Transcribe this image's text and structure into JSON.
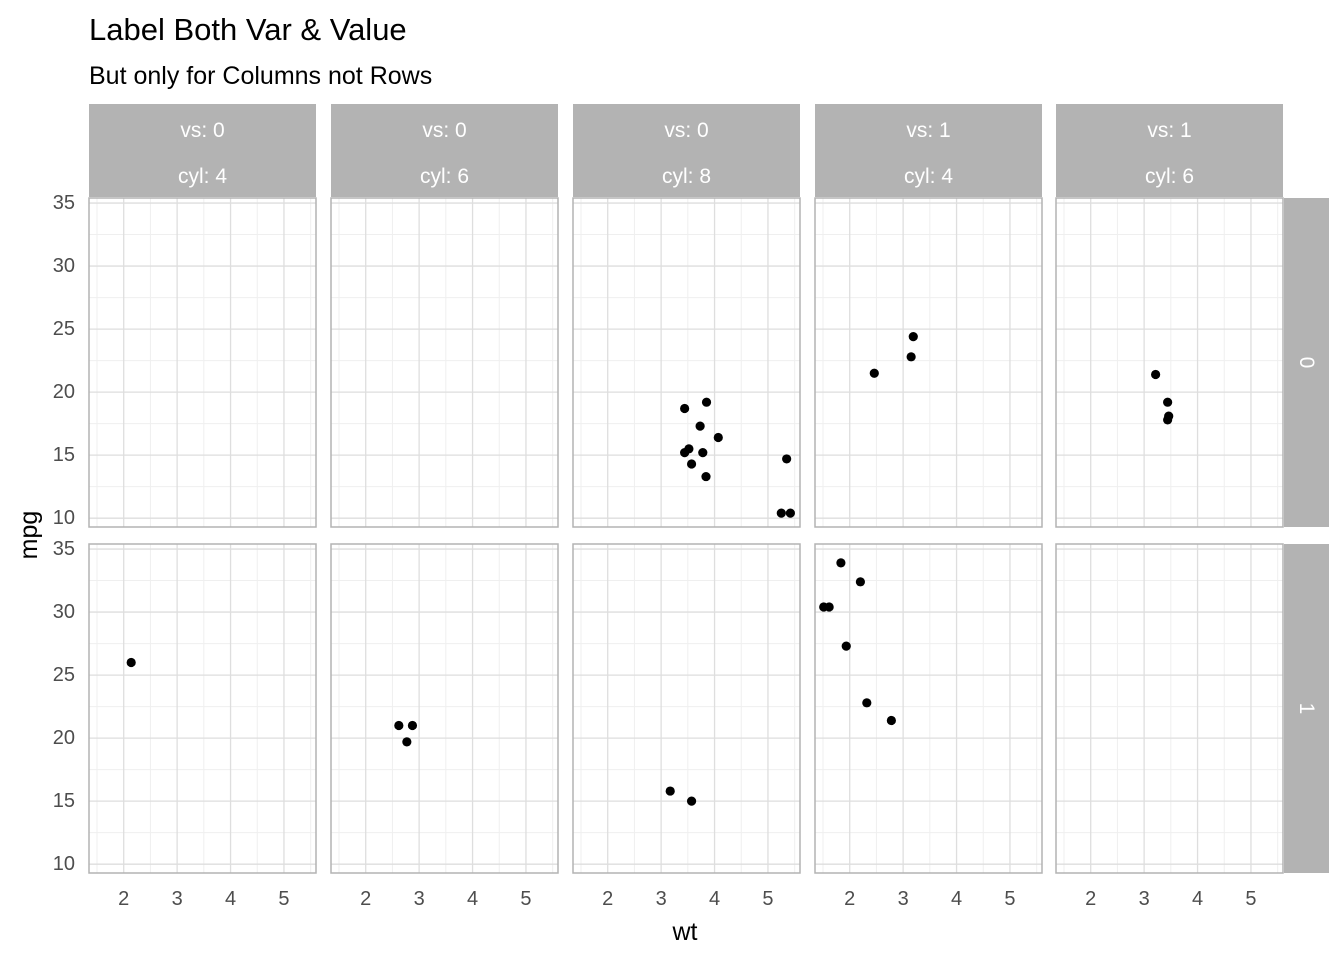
{
  "chart_data": {
    "type": "scatter",
    "title": "Label Both Var & Value",
    "subtitle": "But only for Columns not Rows",
    "xlabel": "wt",
    "ylabel": "mpg",
    "xlim": [
      1.35,
      5.6
    ],
    "ylim": [
      9.3,
      35.4
    ],
    "xticks": [
      2,
      3,
      4,
      5
    ],
    "yticks": [
      10,
      15,
      20,
      25,
      30,
      35
    ],
    "grid": true,
    "point_color": "#000000",
    "strip_color": "#b3b3b3",
    "panel_border_color": "#b3b3b3",
    "grid_major_color": "#dedede",
    "grid_minor_color": "#efefef",
    "column_facets": [
      {
        "label_1": "vs: 0",
        "label_2": "cyl: 4"
      },
      {
        "label_1": "vs: 0",
        "label_2": "cyl: 6"
      },
      {
        "label_1": "vs: 0",
        "label_2": "cyl: 8"
      },
      {
        "label_1": "vs: 1",
        "label_2": "cyl: 4"
      },
      {
        "label_1": "vs: 1",
        "label_2": "cyl: 6"
      }
    ],
    "row_facets": [
      "0",
      "1"
    ],
    "panels": [
      {
        "col": 0,
        "row": 0,
        "points": []
      },
      {
        "col": 1,
        "row": 0,
        "points": []
      },
      {
        "col": 2,
        "row": 0,
        "points": [
          [
            3.44,
            18.7
          ],
          [
            3.57,
            14.3
          ],
          [
            3.44,
            15.2
          ],
          [
            3.52,
            15.5
          ],
          [
            3.78,
            15.2
          ],
          [
            3.84,
            13.3
          ],
          [
            3.85,
            19.2
          ],
          [
            3.73,
            17.3
          ],
          [
            4.07,
            16.4
          ],
          [
            5.25,
            10.4
          ],
          [
            5.42,
            10.4
          ],
          [
            5.35,
            14.7
          ]
        ]
      },
      {
        "col": 3,
        "row": 0,
        "points": [
          [
            2.46,
            21.5
          ],
          [
            3.15,
            22.8
          ],
          [
            3.19,
            24.4
          ]
        ]
      },
      {
        "col": 4,
        "row": 0,
        "points": [
          [
            3.215,
            21.4
          ],
          [
            3.44,
            19.2
          ],
          [
            3.46,
            18.1
          ],
          [
            3.44,
            17.8
          ]
        ]
      },
      {
        "col": 0,
        "row": 1,
        "points": [
          [
            2.14,
            26.0
          ]
        ]
      },
      {
        "col": 1,
        "row": 1,
        "points": [
          [
            2.62,
            21.0
          ],
          [
            2.875,
            21.0
          ],
          [
            2.77,
            19.7
          ]
        ]
      },
      {
        "col": 2,
        "row": 1,
        "points": [
          [
            3.17,
            15.8
          ],
          [
            3.57,
            15.0
          ]
        ]
      },
      {
        "col": 3,
        "row": 1,
        "points": [
          [
            1.835,
            33.9
          ],
          [
            2.2,
            32.4
          ],
          [
            1.513,
            30.4
          ],
          [
            1.615,
            30.4
          ],
          [
            1.935,
            27.3
          ],
          [
            2.32,
            22.8
          ],
          [
            2.78,
            21.4
          ]
        ]
      },
      {
        "col": 4,
        "row": 1,
        "points": []
      }
    ]
  }
}
